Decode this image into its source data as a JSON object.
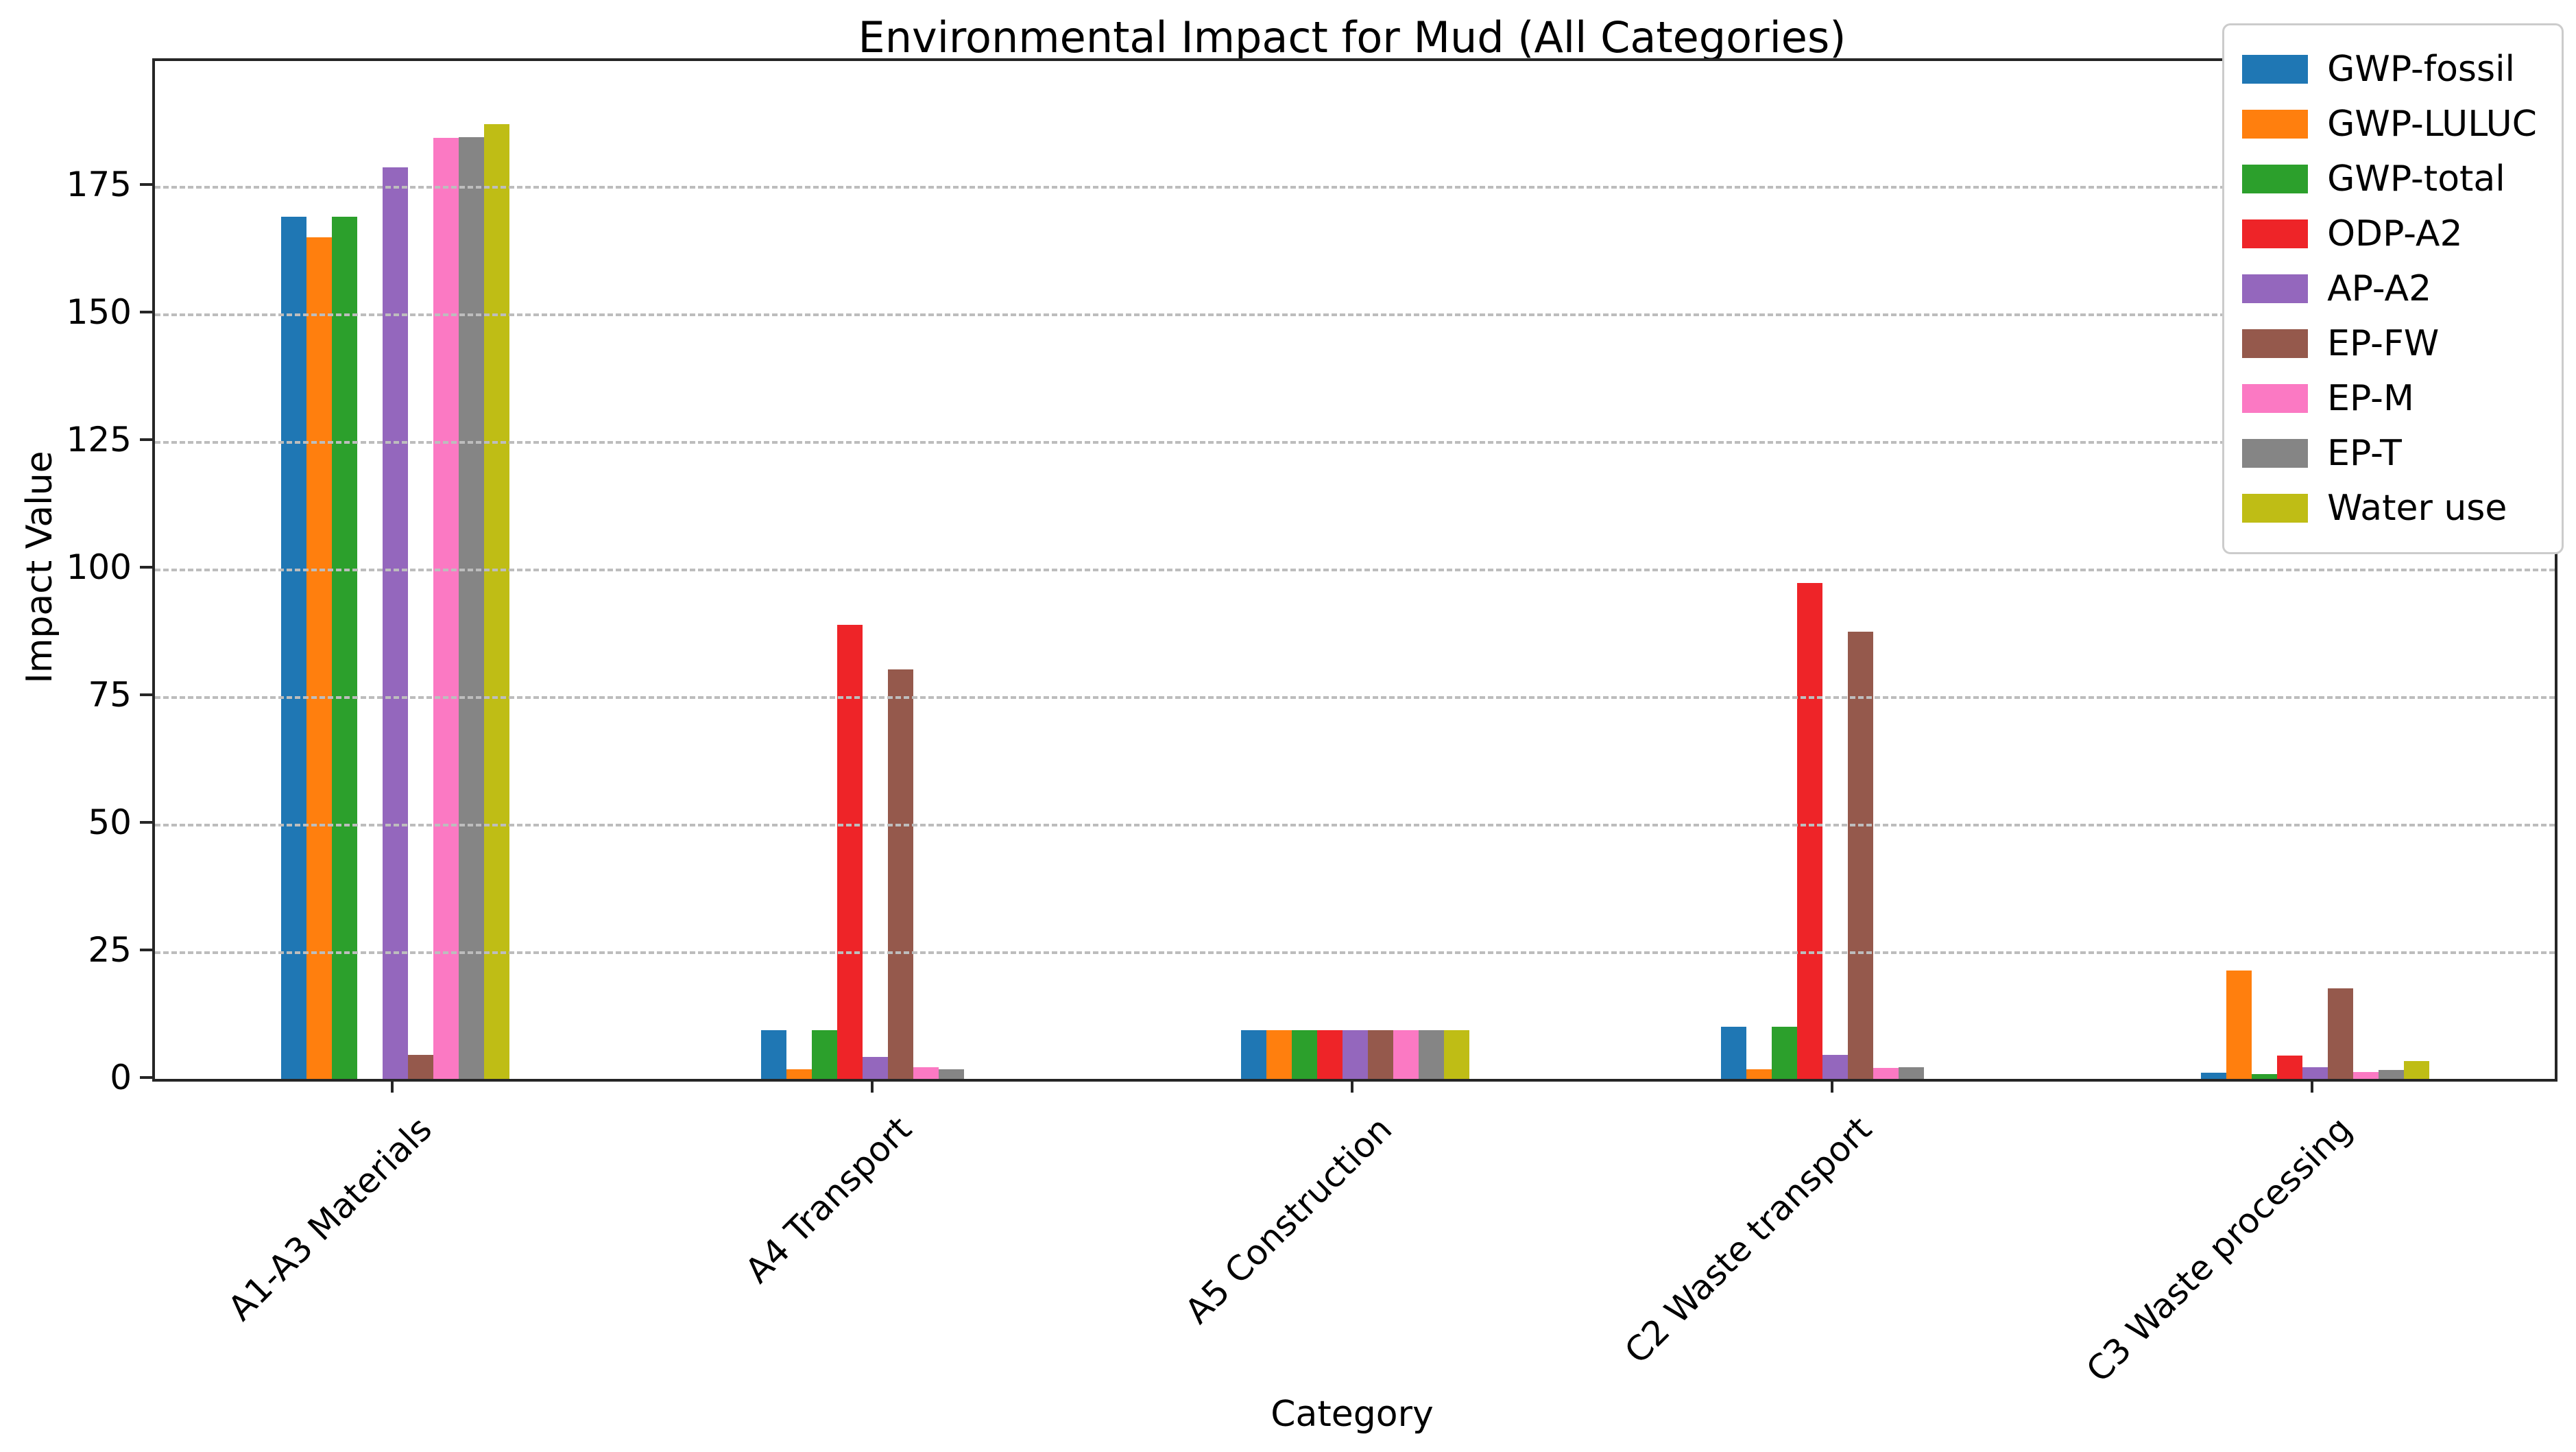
{
  "chart_data": {
    "type": "bar",
    "title": "Environmental Impact for Mud (All Categories)",
    "xlabel": "Category",
    "ylabel": "Impact Value",
    "categories": [
      "A1-A3 Materials",
      "A4 Transport",
      "A5 Construction",
      "C2 Waste transport",
      "C3 Waste processing"
    ],
    "series": [
      {
        "name": "GWP-fossil",
        "color": "#1f77b4",
        "values": [
          169,
          9.5,
          9.5,
          10.2,
          1.2
        ]
      },
      {
        "name": "GWP-LULUC",
        "color": "#ff7f0e",
        "values": [
          165,
          1.9,
          9.5,
          1.9,
          21.2
        ]
      },
      {
        "name": "GWP-total",
        "color": "#2ca02c",
        "values": [
          169,
          9.5,
          9.5,
          10.2,
          1.0
        ]
      },
      {
        "name": "ODP-A2",
        "color": "#ee2428",
        "values": [
          0,
          89,
          9.5,
          97.2,
          4.6
        ]
      },
      {
        "name": "AP-A2",
        "color": "#9467bd",
        "values": [
          178.6,
          4.3,
          9.5,
          4.7,
          2.3
        ]
      },
      {
        "name": "EP-FW",
        "color": "#95594c",
        "values": [
          4.7,
          80.2,
          9.5,
          87.6,
          17.7
        ]
      },
      {
        "name": "EP-M",
        "color": "#fb79c3",
        "values": [
          184.4,
          2.3,
          9.5,
          2.2,
          1.3
        ]
      },
      {
        "name": "EP-T",
        "color": "#858585",
        "values": [
          184.6,
          1.9,
          9.5,
          2.3,
          1.7
        ]
      },
      {
        "name": "Water use",
        "color": "#bfbd15",
        "values": [
          187.1,
          0,
          9.5,
          0,
          3.5
        ]
      }
    ],
    "yticks": [
      0,
      25,
      50,
      75,
      100,
      125,
      150,
      175
    ],
    "ylim": [
      0,
      199.5
    ],
    "grid": "horizontal-dashed",
    "legend_position": "upper right"
  }
}
